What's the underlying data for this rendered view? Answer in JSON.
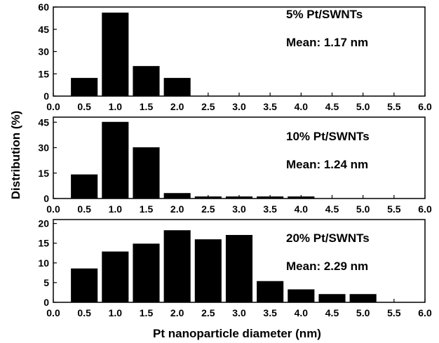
{
  "chart_data": {
    "type": "bar",
    "ylabel": "Distribution (%)",
    "xlabel": "Pt nanoparticle diameter (nm)",
    "x_ticks": [
      "0.0",
      "0.5",
      "1.0",
      "1.5",
      "2.0",
      "2.5",
      "3.0",
      "3.5",
      "4.0",
      "4.5",
      "5.0",
      "5.5",
      "6.0"
    ],
    "xlim": [
      0.0,
      6.0
    ],
    "bar_width": 0.42,
    "panels": [
      {
        "sample_label": "5% Pt/SWNTs",
        "mean_label": "Mean: 1.17 nm",
        "ylim": [
          0,
          60
        ],
        "y_ticks": [
          "0",
          "15",
          "30",
          "45",
          "60"
        ],
        "x": [
          0.5,
          1.0,
          1.5,
          2.0
        ],
        "values": [
          12,
          56,
          20,
          12
        ]
      },
      {
        "sample_label": "10% Pt/SWNTs",
        "mean_label": "Mean: 1.24 nm",
        "ylim": [
          0,
          48
        ],
        "y_ticks": [
          "0",
          "15",
          "30",
          "45"
        ],
        "x": [
          0.5,
          1.0,
          1.5,
          2.0,
          2.5,
          3.0,
          3.5,
          4.0
        ],
        "values": [
          14,
          45,
          30,
          3,
          1,
          1,
          1,
          1
        ]
      },
      {
        "sample_label": "20% Pt/SWNTs",
        "mean_label": "Mean: 2.29 nm",
        "ylim": [
          0,
          21
        ],
        "y_ticks": [
          "0",
          "5",
          "10",
          "15",
          "20"
        ],
        "x": [
          0.5,
          1.0,
          1.5,
          2.0,
          2.5,
          3.0,
          3.5,
          4.0,
          4.5,
          5.0
        ],
        "values": [
          8.5,
          12.8,
          14.8,
          18.2,
          15.9,
          17,
          5.3,
          3.2,
          2,
          2
        ]
      }
    ]
  }
}
